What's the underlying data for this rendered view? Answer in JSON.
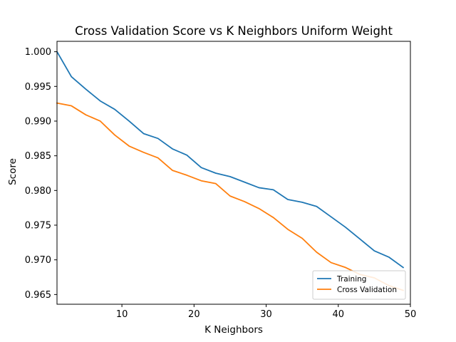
{
  "chart_data": {
    "type": "line",
    "title": "Cross Validation Score vs K Neighbors Uniform Weight",
    "xlabel": "K Neighbors",
    "ylabel": "Score",
    "xlim": [
      1,
      50
    ],
    "ylim": [
      0.9636,
      1.0015
    ],
    "xticks": [
      10,
      20,
      30,
      40,
      50
    ],
    "yticks": [
      0.965,
      0.97,
      0.975,
      0.98,
      0.985,
      0.99,
      0.995,
      1.0
    ],
    "ytick_labels": [
      "0.965",
      "0.970",
      "0.975",
      "0.980",
      "0.985",
      "0.990",
      "0.995",
      "1.000"
    ],
    "grid": false,
    "legend_position": "lower-right",
    "x": [
      1,
      3,
      5,
      7,
      9,
      11,
      13,
      15,
      17,
      19,
      21,
      23,
      25,
      27,
      29,
      31,
      33,
      35,
      37,
      39,
      41,
      43,
      45,
      47,
      49
    ],
    "series": [
      {
        "name": "Training",
        "color": "#1f77b4",
        "values": [
          1.0,
          0.9964,
          0.9946,
          0.9929,
          0.9917,
          0.99,
          0.9882,
          0.9875,
          0.986,
          0.9851,
          0.9833,
          0.9825,
          0.982,
          0.9812,
          0.9804,
          0.9801,
          0.9787,
          0.9783,
          0.9777,
          0.9762,
          0.9747,
          0.973,
          0.9713,
          0.9704,
          0.9689
        ]
      },
      {
        "name": "Cross Validation",
        "color": "#ff7f0e",
        "values": [
          0.9926,
          0.9922,
          0.9909,
          0.99,
          0.988,
          0.9864,
          0.9855,
          0.9847,
          0.9829,
          0.9822,
          0.9814,
          0.981,
          0.9792,
          0.9784,
          0.9774,
          0.9761,
          0.9744,
          0.9731,
          0.9711,
          0.9696,
          0.9689,
          0.9679,
          0.9674,
          0.9663,
          0.9656
        ]
      }
    ]
  }
}
